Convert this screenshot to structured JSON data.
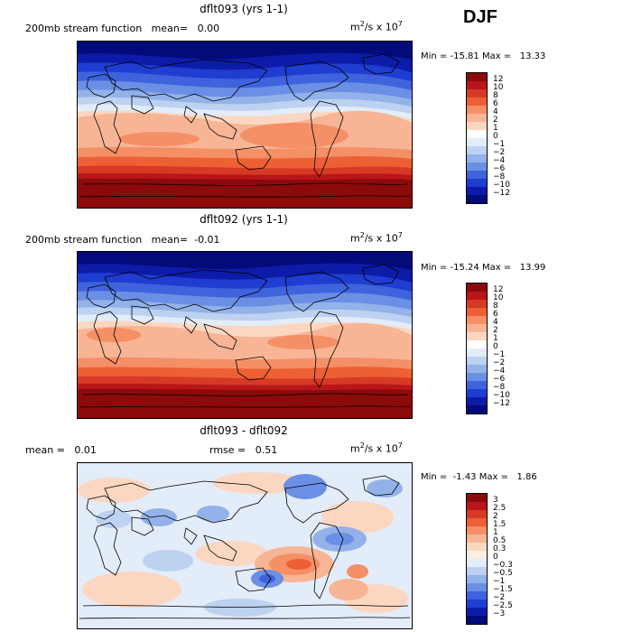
{
  "season": "DJF",
  "panels": [
    {
      "title": "dflt093 (yrs 1-1)",
      "sub_left": "200mb stream function",
      "mean_label": "mean=",
      "mean_value": "0.00",
      "rmse_label": "",
      "rmse_value": "",
      "units_base": "m",
      "units_exp1": "2",
      "units_mid": "/s x 10",
      "units_exp2": "7",
      "min_label": "Min =",
      "min_value": "-15.81",
      "max_label": "Max =",
      "max_value": "13.33",
      "colorbar_levels": [
        "12",
        "10",
        "8",
        "6",
        "4",
        "2",
        "1",
        "0",
        "−1",
        "−2",
        "−4",
        "−6",
        "−8",
        "−10",
        "−12"
      ],
      "colorbar_colors": [
        "#8c0a0a",
        "#b8161a",
        "#d63a25",
        "#ec6033",
        "#f48f66",
        "#f7b596",
        "#fbd7c2",
        "#ffffff",
        "#e3ecf9",
        "#bdd1f0",
        "#93b2ea",
        "#6b8fe5",
        "#3f63dd",
        "#1f3dd0",
        "#0c1ca8",
        "#030a7a"
      ]
    },
    {
      "title": "dflt092 (yrs 1-1)",
      "sub_left": "200mb stream function",
      "mean_label": "mean=",
      "mean_value": "-0.01",
      "rmse_label": "",
      "rmse_value": "",
      "units_base": "m",
      "units_exp1": "2",
      "units_mid": "/s x 10",
      "units_exp2": "7",
      "min_label": "Min =",
      "min_value": "-15.24",
      "max_label": "Max =",
      "max_value": "13.99",
      "colorbar_levels": [
        "12",
        "10",
        "8",
        "6",
        "4",
        "2",
        "1",
        "0",
        "−1",
        "−2",
        "−4",
        "−6",
        "−8",
        "−10",
        "−12"
      ],
      "colorbar_colors": [
        "#8c0a0a",
        "#b8161a",
        "#d63a25",
        "#ec6033",
        "#f48f66",
        "#f7b596",
        "#fbd7c2",
        "#ffffff",
        "#e3ecf9",
        "#bdd1f0",
        "#93b2ea",
        "#6b8fe5",
        "#3f63dd",
        "#1f3dd0",
        "#0c1ca8",
        "#030a7a"
      ]
    },
    {
      "title": "dflt093 - dflt092",
      "sub_left": "",
      "mean_label": "mean =",
      "mean_value": "0.01",
      "rmse_label": "rmse =",
      "rmse_value": "0.51",
      "units_base": "m",
      "units_exp1": "2",
      "units_mid": "/s x 10",
      "units_exp2": "7",
      "min_label": "Min =",
      "min_value": "-1.43",
      "max_label": "Max =",
      "max_value": "1.86",
      "colorbar_levels": [
        "3",
        "2.5",
        "2",
        "1.5",
        "1",
        "0.5",
        "0.3",
        "0",
        "−0.3",
        "−0.5",
        "−1",
        "−1.5",
        "−2",
        "−2.5",
        "−3"
      ],
      "colorbar_colors": [
        "#8c0a0a",
        "#b8161a",
        "#d63a25",
        "#ec6033",
        "#f48f66",
        "#f7b596",
        "#fbd7c2",
        "#fdeee4",
        "#e3ecf9",
        "#bdd1f0",
        "#93b2ea",
        "#6b8fe5",
        "#3f63dd",
        "#1f3dd0",
        "#0c1ca8",
        "#030a7a"
      ]
    }
  ],
  "colors": {
    "map_red_deep": "#8c0a0a",
    "map_red": "#d63a25",
    "map_peach": "#f7b596",
    "map_light": "#fbd7c2",
    "map_blue_light": "#bdd1f0",
    "map_blue": "#3f63dd",
    "map_blue_deep": "#030a7a"
  }
}
